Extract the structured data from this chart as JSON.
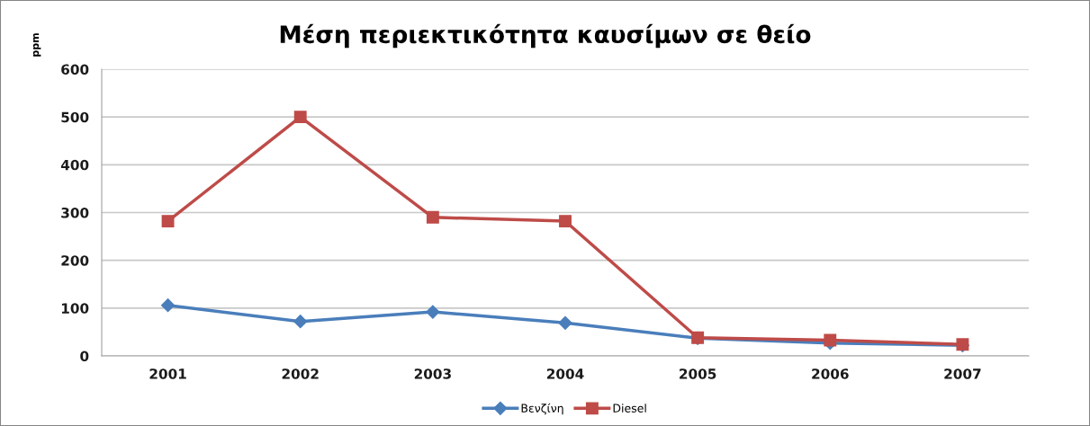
{
  "chart_data": {
    "type": "line",
    "title": "Μέση περιεκτικότητα καυσίμων σε θείο",
    "ylabel": "ppm",
    "categories": [
      "2001",
      "2002",
      "2003",
      "2004",
      "2005",
      "2006",
      "2007"
    ],
    "series": [
      {
        "name": "Βενζίνη",
        "color": "#4a7ebb",
        "marker": "diamond",
        "values": [
          106,
          72,
          92,
          69,
          37,
          27,
          22
        ]
      },
      {
        "name": "Diesel",
        "color": "#be4b48",
        "marker": "square",
        "values": [
          282,
          500,
          290,
          282,
          38,
          33,
          24
        ]
      }
    ],
    "ylim": [
      0,
      600
    ],
    "yticks": [
      0,
      100,
      200,
      300,
      400,
      500,
      600
    ],
    "grid": "y",
    "legend": "bottom",
    "line_style": "solid"
  }
}
